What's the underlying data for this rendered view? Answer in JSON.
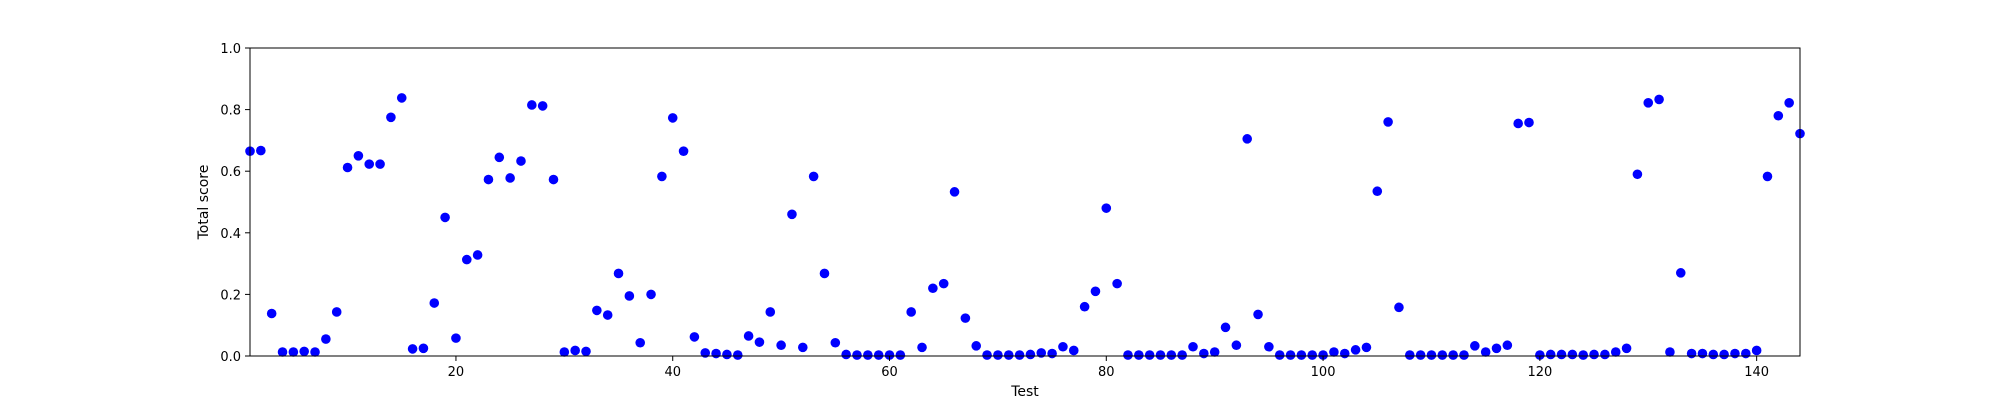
{
  "chart_data": {
    "type": "scatter",
    "title": "",
    "xlabel": "Test",
    "ylabel": "Total score",
    "xlim": [
      1,
      144
    ],
    "ylim": [
      0,
      1
    ],
    "xticks": [
      20,
      40,
      60,
      80,
      100,
      120,
      140
    ],
    "yticks": [
      0.0,
      0.2,
      0.4,
      0.6,
      0.8,
      1.0
    ],
    "ytick_labels": [
      "0.0",
      "0.2",
      "0.4",
      "0.6",
      "0.8",
      "1.0"
    ],
    "grid": false,
    "legend": "none",
    "marker_color": "#0000ff",
    "series": [
      {
        "x": [
          1,
          2,
          3,
          4,
          5,
          6,
          7,
          8,
          9,
          10,
          11,
          12,
          13,
          14,
          15,
          16,
          17,
          18,
          19,
          20,
          21,
          22,
          23,
          24,
          25,
          26,
          27,
          28,
          29,
          30,
          31,
          32,
          33,
          34,
          35,
          36,
          37,
          38,
          39,
          40,
          41,
          42,
          43,
          44,
          45,
          46,
          47,
          48,
          49,
          50,
          51,
          52,
          53,
          54,
          55,
          56,
          57,
          58,
          59,
          60,
          61,
          62,
          63,
          64,
          65,
          66,
          67,
          68,
          69,
          70,
          71,
          72,
          73,
          74,
          75,
          76,
          77,
          78,
          79,
          80,
          81,
          82,
          83,
          84,
          85,
          86,
          87,
          88,
          89,
          90,
          91,
          92,
          93,
          94,
          95,
          96,
          97,
          98,
          99,
          100,
          101,
          102,
          103,
          104,
          105,
          106,
          107,
          108,
          109,
          110,
          111,
          112,
          113,
          114,
          115,
          116,
          117,
          118,
          119,
          120,
          121,
          122,
          123,
          124,
          125,
          126,
          127,
          128,
          129,
          130,
          131,
          132,
          133,
          134,
          135,
          136,
          137,
          138,
          139,
          140,
          141,
          142,
          143,
          144
        ],
        "y": [
          0.665,
          0.667,
          0.138,
          0.013,
          0.013,
          0.015,
          0.013,
          0.055,
          0.143,
          0.612,
          0.65,
          0.623,
          0.623,
          0.775,
          0.838,
          0.023,
          0.025,
          0.172,
          0.45,
          0.058,
          0.313,
          0.328,
          0.573,
          0.645,
          0.578,
          0.633,
          0.815,
          0.812,
          0.573,
          0.013,
          0.018,
          0.015,
          0.148,
          0.133,
          0.268,
          0.195,
          0.043,
          0.2,
          0.583,
          0.773,
          0.665,
          0.062,
          0.01,
          0.008,
          0.005,
          0.003,
          0.065,
          0.045,
          0.143,
          0.035,
          0.46,
          0.028,
          0.583,
          0.268,
          0.043,
          0.005,
          0.003,
          0.003,
          0.003,
          0.003,
          0.003,
          0.143,
          0.028,
          0.22,
          0.235,
          0.533,
          0.123,
          0.033,
          0.003,
          0.003,
          0.003,
          0.003,
          0.005,
          0.01,
          0.008,
          0.03,
          0.018,
          0.16,
          0.21,
          0.48,
          0.235,
          0.003,
          0.003,
          0.003,
          0.003,
          0.003,
          0.003,
          0.03,
          0.008,
          0.013,
          0.093,
          0.035,
          0.705,
          0.135,
          0.03,
          0.003,
          0.003,
          0.003,
          0.003,
          0.003,
          0.013,
          0.008,
          0.02,
          0.028,
          0.535,
          0.76,
          0.158,
          0.003,
          0.003,
          0.003,
          0.003,
          0.003,
          0.003,
          0.033,
          0.013,
          0.025,
          0.035,
          0.755,
          0.758,
          0.003,
          0.005,
          0.005,
          0.005,
          0.003,
          0.005,
          0.005,
          0.013,
          0.025,
          0.59,
          0.822,
          0.833,
          0.013,
          0.27,
          0.008,
          0.008,
          0.005,
          0.005,
          0.008,
          0.008,
          0.018,
          0.583,
          0.78,
          0.822,
          0.722
        ]
      }
    ]
  }
}
